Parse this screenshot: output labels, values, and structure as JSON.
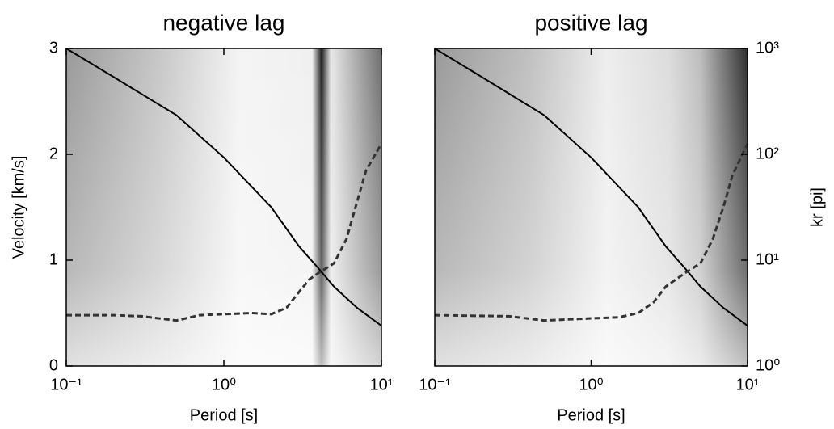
{
  "chart_data": [
    {
      "type": "line",
      "title": "negative lag",
      "xlabel": "Period [s]",
      "ylabel": "Velocity [km/s]",
      "xlog": true,
      "xlim": [
        0.1,
        10
      ],
      "xticks": [
        {
          "value": 0.1,
          "label": "10⁻¹"
        },
        {
          "value": 1,
          "label": "10⁰"
        },
        {
          "value": 10,
          "label": "10¹"
        }
      ],
      "ylim": [
        0,
        3
      ],
      "yticks": [
        0,
        1,
        2,
        3
      ],
      "series": [
        {
          "color": "#000000",
          "dashed": false,
          "x": [
            0.1,
            0.2,
            0.5,
            1,
            2,
            3,
            4,
            5,
            7,
            10
          ],
          "values": [
            3,
            2.73,
            2.37,
            1.97,
            1.5,
            1.13,
            0.92,
            0.75,
            0.55,
            0.38
          ]
        },
        {
          "color": "#333333",
          "dashed": true,
          "x": [
            0.1,
            0.2,
            0.3,
            0.5,
            0.7,
            1,
            1.5,
            2,
            2.5,
            3,
            3.5,
            4,
            5,
            6,
            7,
            8,
            10
          ],
          "values": [
            0.48,
            0.48,
            0.47,
            0.43,
            0.48,
            0.49,
            0.5,
            0.49,
            0.55,
            0.7,
            0.82,
            0.88,
            0.97,
            1.2,
            1.55,
            1.85,
            2.1
          ]
        }
      ]
    },
    {
      "type": "line",
      "title": "positive lag",
      "xlabel": "Period [s]",
      "y2label": "kr [pi]",
      "xlog": true,
      "xlim": [
        0.1,
        10
      ],
      "xticks": [
        {
          "value": 0.1,
          "label": "10⁻¹"
        },
        {
          "value": 1,
          "label": "10⁰"
        },
        {
          "value": 10,
          "label": "10¹"
        }
      ],
      "ylim": [
        0,
        3
      ],
      "y2log": true,
      "y2lim": [
        1,
        1000
      ],
      "y2ticks": [
        {
          "value": 1,
          "label": "10⁰"
        },
        {
          "value": 10,
          "label": "10¹"
        },
        {
          "value": 100,
          "label": "10²"
        },
        {
          "value": 1000,
          "label": "10³"
        }
      ],
      "series": [
        {
          "color": "#000000",
          "dashed": false,
          "x": [
            0.1,
            0.2,
            0.5,
            1,
            2,
            3,
            4,
            5,
            7,
            10
          ],
          "values": [
            3,
            2.73,
            2.37,
            1.97,
            1.5,
            1.13,
            0.92,
            0.75,
            0.55,
            0.38
          ]
        },
        {
          "color": "#333333",
          "dashed": true,
          "x": [
            0.1,
            0.3,
            0.5,
            0.7,
            1,
            1.5,
            2,
            2.5,
            3,
            4,
            5,
            6,
            7,
            8,
            10
          ],
          "values": [
            0.48,
            0.47,
            0.43,
            0.44,
            0.45,
            0.46,
            0.5,
            0.6,
            0.75,
            0.88,
            0.97,
            1.2,
            1.5,
            1.8,
            2.1
          ]
        }
      ]
    }
  ]
}
